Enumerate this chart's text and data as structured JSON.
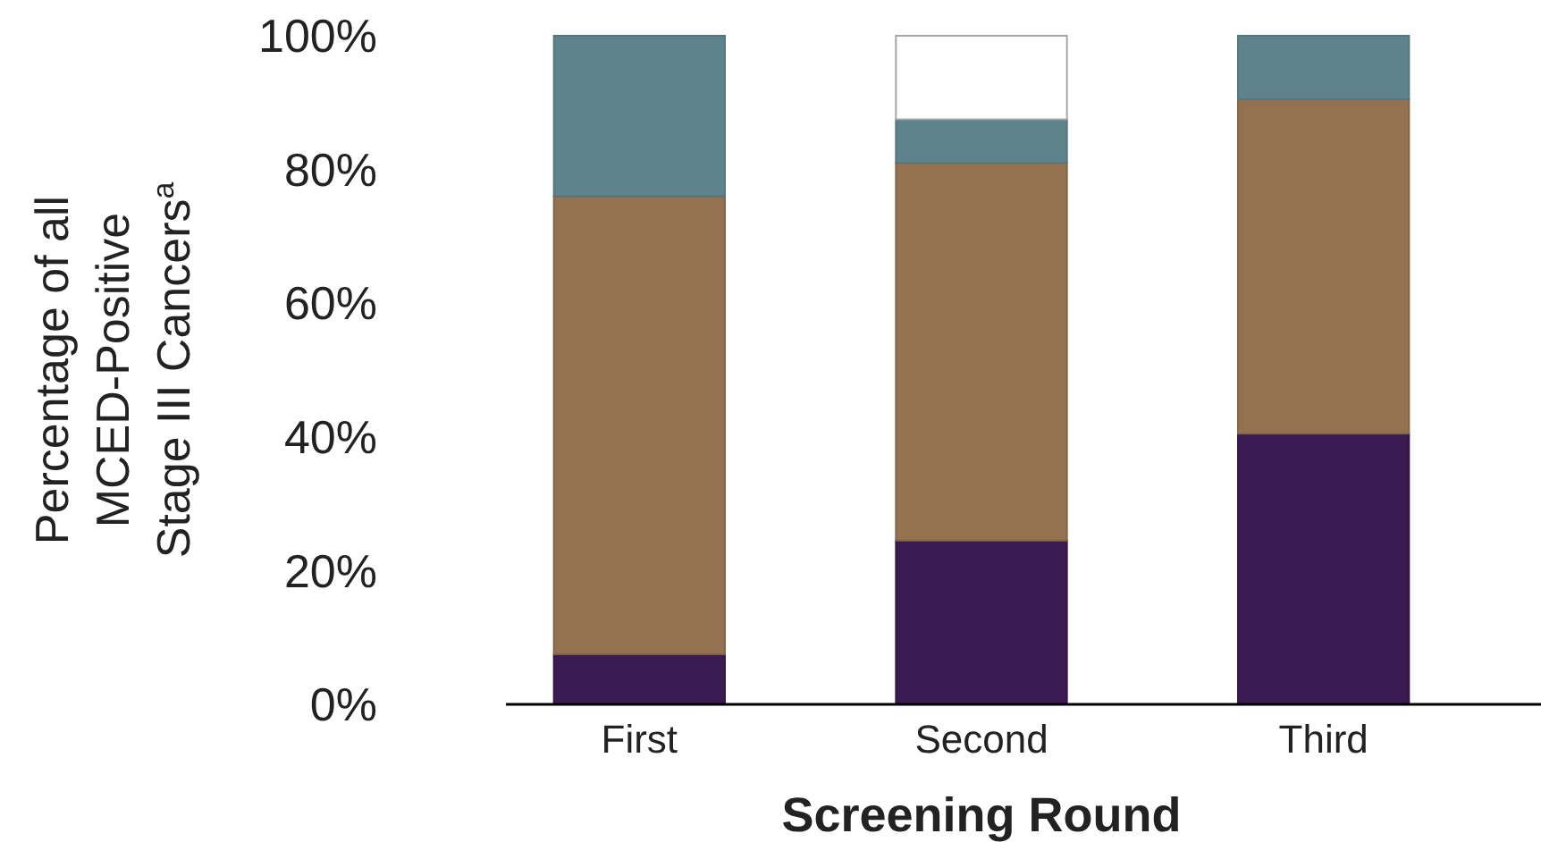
{
  "chart_data": {
    "type": "bar",
    "stacked": true,
    "xlabel": "Screening Round",
    "ylabel": "Percentage of all\nMCED-Positive\nStage III Cancers$^{a}$",
    "categories": [
      "First",
      "Second",
      "Third"
    ],
    "series": [
      {
        "color": "#3b1a52",
        "values": [
          7.5,
          24.5,
          40.5
        ]
      },
      {
        "color": "#927250",
        "values": [
          68.5,
          56.5,
          50
        ]
      },
      {
        "color": "#5f838d",
        "values": [
          24,
          6.5,
          9.5
        ]
      },
      {
        "color": "#ffffff",
        "values": [
          null,
          12.5,
          null
        ]
      }
    ],
    "ylim": [
      0,
      100
    ],
    "yticks": [
      {
        "value": 0,
        "label": "0%"
      },
      {
        "value": 20,
        "label": "20%"
      },
      {
        "value": 40,
        "label": "40%"
      },
      {
        "value": 60,
        "label": "60%"
      },
      {
        "value": 80,
        "label": "80%"
      },
      {
        "value": 100,
        "label": "100%"
      }
    ],
    "grid": false
  }
}
